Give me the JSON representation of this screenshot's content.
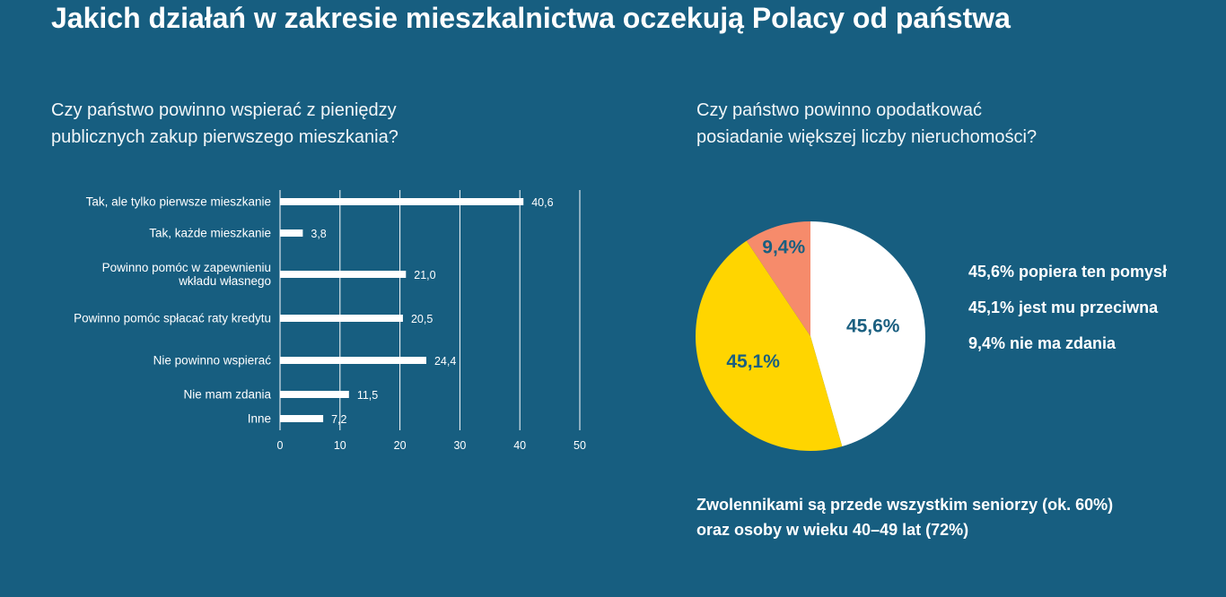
{
  "title": "Jakich działań w zakresie mieszkalnictwa oczekują Polacy od państwa",
  "chart_data": [
    {
      "type": "bar",
      "subtitle": "Czy państwo powinno wspierać z pieniędzy\npublicznych zakup pierwszego mieszkania?",
      "categories": [
        "Tak, ale tylko pierwsze mieszkanie",
        "Tak, każde  mieszkanie",
        "Powinno pomóc w zapewnieniu\nwkładu własnego",
        "Powinno pomóc spłacać raty kredytu",
        "Nie powinno wspierać",
        "Nie mam zdania",
        "Inne"
      ],
      "values": [
        40.6,
        3.8,
        21.0,
        20.5,
        24.4,
        11.5,
        7.2
      ],
      "value_labels": [
        "40,6",
        "3,8",
        "21,0",
        "20,5",
        "24,4",
        "11,5",
        "7,2"
      ],
      "color": "#ffffff",
      "xlim": [
        0,
        50
      ],
      "xticks": [
        0,
        10,
        20,
        30,
        40,
        50
      ],
      "grid": true
    },
    {
      "type": "pie",
      "subtitle": "Czy państwo powinno opodatkować\nposiadanie większej liczby nieruchomości?",
      "values": [
        45.6,
        45.1,
        9.4
      ],
      "value_labels": [
        "45,6%",
        "45,1%",
        "9,4%"
      ],
      "colors": [
        "#ffffff",
        "#ffd500",
        "#f68b6b"
      ],
      "annotations": [
        "45,6% popiera ten pomysł",
        "45,1% jest mu przeciwna",
        "9,4% nie ma zdania"
      ],
      "note": "Zwolennikami są przede wszystkim seniorzy (ok. 60%)\noraz osoby w wieku 40–49 lat (72%)"
    }
  ]
}
